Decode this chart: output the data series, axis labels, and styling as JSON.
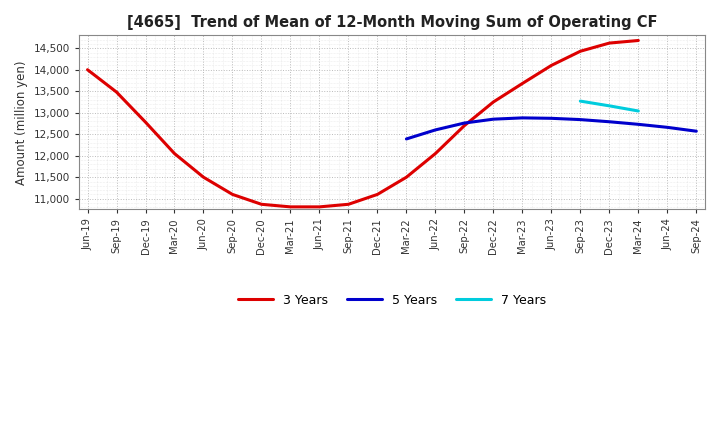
{
  "title": "[4665]  Trend of Mean of 12-Month Moving Sum of Operating CF",
  "ylabel": "Amount (million yen)",
  "ylim": [
    10750,
    14800
  ],
  "yticks": [
    11000,
    11500,
    12000,
    12500,
    13000,
    13500,
    14000,
    14500
  ],
  "background_color": "#ffffff",
  "grid_color": "#bbbbbb",
  "x_labels": [
    "Jun-19",
    "Sep-19",
    "Dec-19",
    "Mar-20",
    "Jun-20",
    "Sep-20",
    "Dec-20",
    "Mar-21",
    "Jun-21",
    "Sep-21",
    "Dec-21",
    "Mar-22",
    "Jun-22",
    "Sep-22",
    "Dec-22",
    "Mar-23",
    "Jun-23",
    "Sep-23",
    "Dec-23",
    "Mar-24",
    "Jun-24",
    "Sep-24"
  ],
  "series_3yr": {
    "color": "#dd0000",
    "label": "3 Years",
    "values": [
      14000,
      13480,
      12780,
      12050,
      11500,
      11100,
      10870,
      10810,
      10810,
      10870,
      11100,
      11500,
      12050,
      12700,
      13250,
      13680,
      14100,
      14430,
      14620,
      14680,
      null,
      null
    ]
  },
  "series_5yr": {
    "color": "#0000cc",
    "label": "5 Years",
    "values": [
      null,
      null,
      null,
      null,
      null,
      null,
      null,
      null,
      null,
      null,
      null,
      12390,
      12600,
      12760,
      12850,
      12880,
      12870,
      12840,
      12790,
      12730,
      12660,
      12570
    ]
  },
  "series_7yr": {
    "color": "#00ccdd",
    "label": "7 Years",
    "values": [
      null,
      null,
      null,
      null,
      null,
      null,
      null,
      null,
      null,
      null,
      null,
      null,
      null,
      null,
      null,
      null,
      null,
      13270,
      13160,
      13040,
      null,
      null
    ]
  },
  "series_10yr": {
    "color": "#009900",
    "values": [
      null,
      null,
      null,
      null,
      null,
      null,
      null,
      null,
      null,
      null,
      null,
      null,
      null,
      null,
      null,
      null,
      null,
      null,
      null,
      null,
      null,
      null
    ]
  }
}
